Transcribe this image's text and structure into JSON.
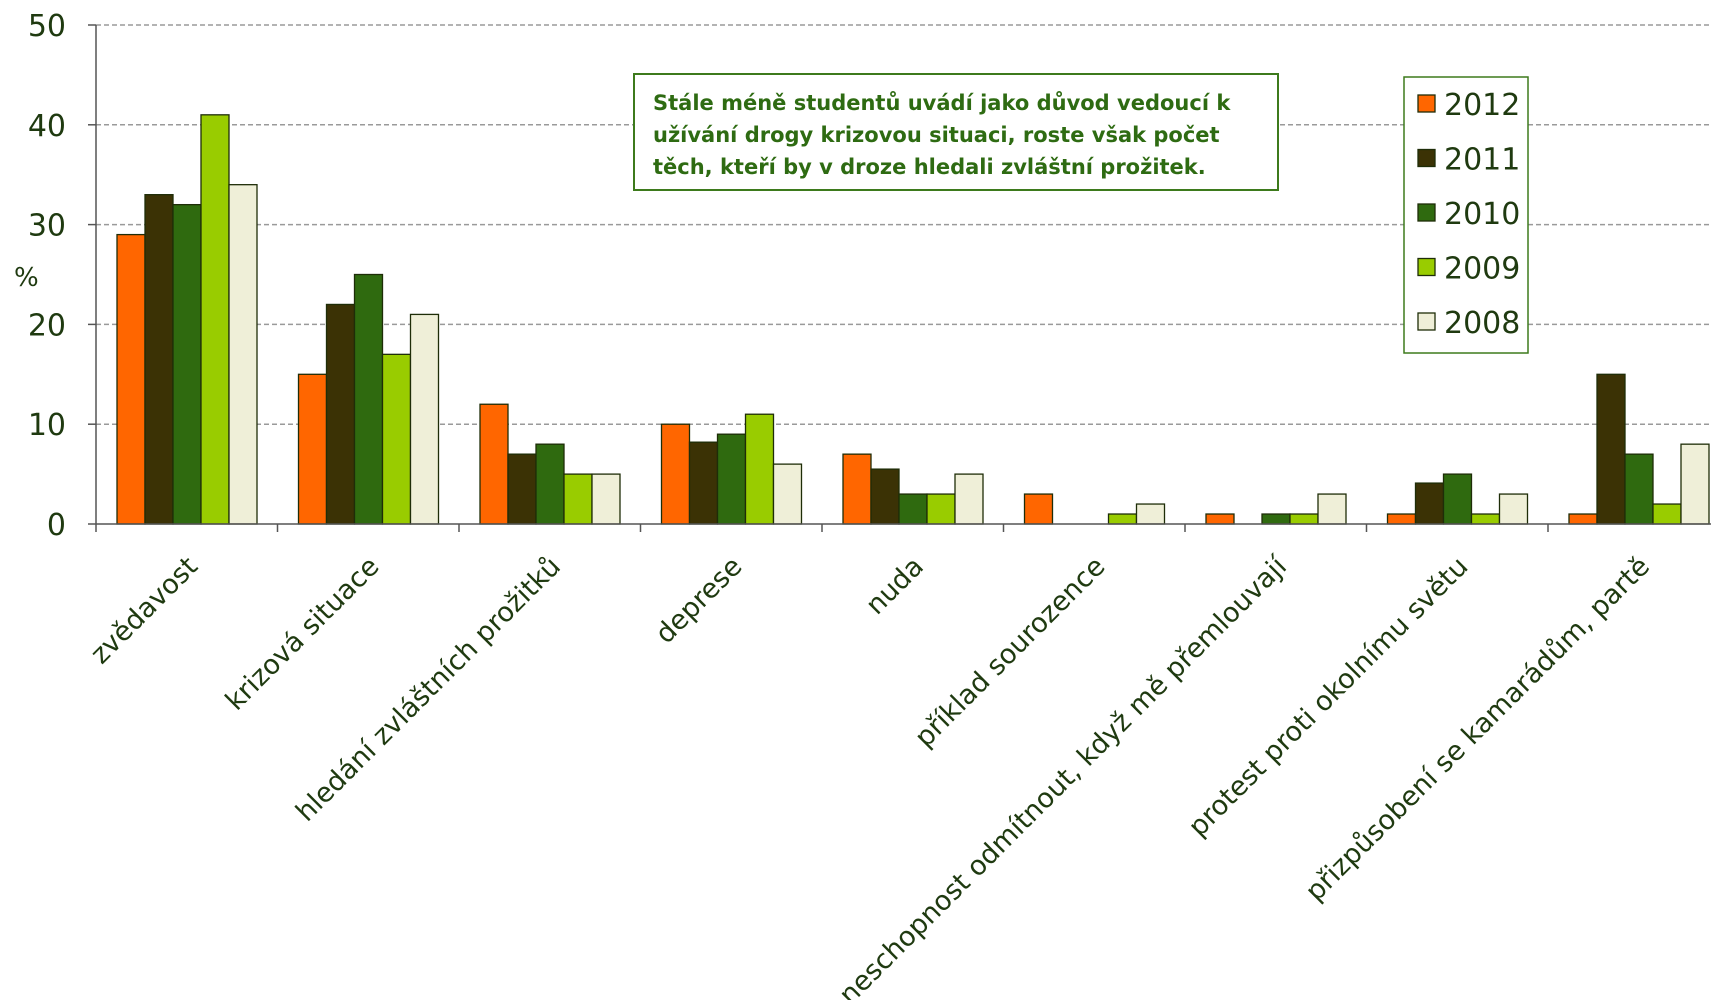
{
  "chart_data": {
    "type": "bar",
    "title": "",
    "xlabel": "",
    "ylabel": "%",
    "ylim": [
      0,
      50
    ],
    "yticks": [
      "0",
      "10",
      "20",
      "30",
      "40",
      "50"
    ],
    "grid": true,
    "legend_position": "top-right",
    "annotation": "Stále méně studentů uvádí jako důvod vedoucí k užívání drogy krizovou situaci, roste však počet těch, kteří  by v droze hledali zvláštní prožitek.",
    "categories": [
      "zvědavost",
      "krizová situace",
      "hledání zvláštních prožitků",
      "deprese",
      "nuda",
      "příklad sourozence",
      "neschopnost odmítnout, když mě přemlouvají",
      "protest proti okolnímu světu",
      "přizpůsobení se kamarádům, partě"
    ],
    "series": [
      {
        "name": "2012",
        "color": "#ff6600",
        "values": [
          29,
          15,
          12,
          10,
          7,
          3,
          1,
          1,
          1
        ]
      },
      {
        "name": "2011",
        "color": "#3b3205",
        "values": [
          33,
          22,
          7,
          8.2,
          5.5,
          0,
          0,
          4.1,
          15
        ]
      },
      {
        "name": "2010",
        "color": "#2f6a0f",
        "values": [
          32,
          25,
          8,
          9,
          3,
          0,
          1,
          5,
          7
        ]
      },
      {
        "name": "2009",
        "color": "#99cc00",
        "values": [
          41,
          17,
          5,
          11,
          3,
          1,
          1,
          1,
          2
        ]
      },
      {
        "name": "2008",
        "color": "#efefd8",
        "values": [
          34,
          21,
          5,
          6,
          5,
          2,
          3,
          3,
          8
        ]
      }
    ]
  }
}
